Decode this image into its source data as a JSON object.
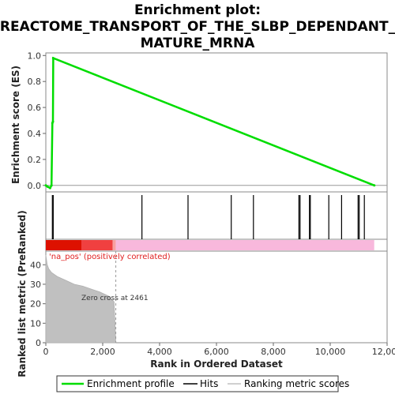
{
  "chart_data": {
    "type": "line",
    "title_lines": [
      "Enrichment plot:",
      "REACTOME_TRANSPORT_OF_THE_SLBP_DEPENDANT_",
      "MATURE_MRNA"
    ],
    "es_panel": {
      "ylabel": "Enrichment score (ES)",
      "ylim": [
        -0.05,
        1.02
      ],
      "yticks": [
        0.0,
        0.2,
        0.4,
        0.6,
        0.8,
        1.0
      ],
      "ytick_labels": [
        "0.0",
        "0.2",
        "0.4",
        "0.6",
        "0.8",
        "1.0"
      ],
      "series": [
        {
          "name": "Enrichment profile",
          "color": "#00dd00",
          "x": [
            0,
            60,
            150,
            200,
            230,
            250,
            260,
            11550
          ],
          "y": [
            0.0,
            -0.01,
            -0.02,
            0.0,
            0.48,
            0.49,
            0.98,
            0.0
          ]
        }
      ]
    },
    "hits_panel": {
      "hit_positions": [
        230,
        260,
        3380,
        5000,
        6520,
        7300,
        8900,
        8940,
        9270,
        9300,
        9950,
        10400,
        10980,
        11020,
        11200
      ]
    },
    "rank_bar": {
      "segments": [
        {
          "x0": 0,
          "x1": 1250,
          "color": "#dd1100"
        },
        {
          "x0": 1250,
          "x1": 2350,
          "color": "#f04040"
        },
        {
          "x0": 2350,
          "x1": 2461,
          "color": "#f8a0a0"
        },
        {
          "x0": 2461,
          "x1": 11550,
          "color": "#f8b8dc"
        }
      ]
    },
    "metric_panel": {
      "ylabel": "Ranked list metric (PreRanked)",
      "ylim": [
        0,
        47
      ],
      "yticks": [
        0,
        10,
        20,
        30,
        40
      ],
      "ytick_labels": [
        "0",
        "10",
        "20",
        "30",
        "40"
      ],
      "x": [
        0,
        50,
        100,
        200,
        400,
        700,
        1000,
        1300,
        1600,
        1900,
        2200,
        2400,
        2461
      ],
      "y": [
        45,
        40,
        38,
        36,
        34,
        32,
        30,
        29,
        27.5,
        26,
        24,
        21,
        0
      ],
      "positive_label": "'na_pos' (positively correlated)",
      "zero_cross_label": "Zero cross at 2461",
      "zero_cross_x": 2461
    },
    "x_axis": {
      "xlabel": "Rank in Ordered Dataset",
      "xlim": [
        0,
        12000
      ],
      "xticks": [
        0,
        2000,
        4000,
        6000,
        8000,
        10000,
        12000
      ],
      "xtick_labels": [
        "0",
        "2,000",
        "4,000",
        "6,000",
        "8,000",
        "10,000",
        "12,000"
      ]
    },
    "legend": {
      "placement": "bottom",
      "items": [
        {
          "label": "Enrichment profile",
          "color": "#00dd00",
          "style": "line"
        },
        {
          "label": "Hits",
          "color": "#000000",
          "style": "line"
        },
        {
          "label": "Ranking metric scores",
          "color": "#c0c0c0",
          "style": "line"
        }
      ]
    }
  }
}
